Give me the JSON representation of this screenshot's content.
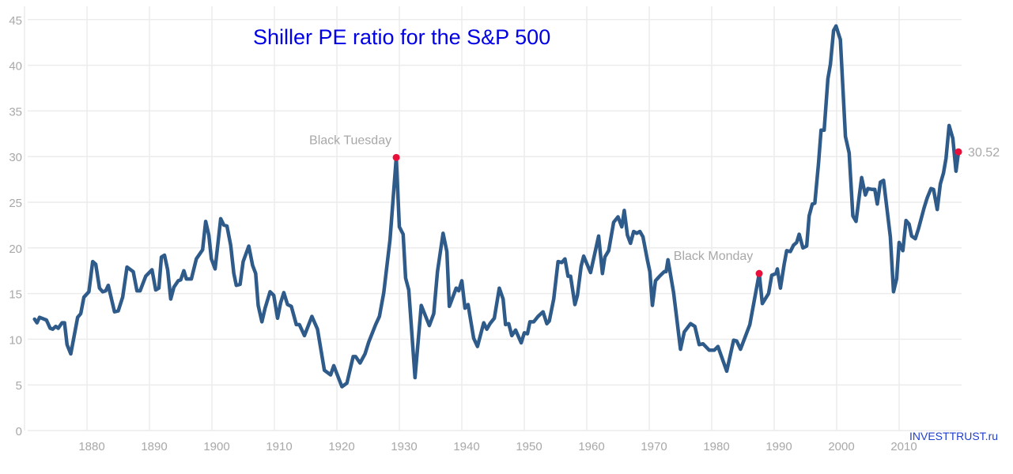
{
  "chart_data": {
    "type": "line",
    "title": "Shiller PE ratio for the S&P 500",
    "xlabel": "",
    "ylabel": "",
    "xlim": [
      1870.5,
      2020
    ],
    "ylim": [
      0,
      45
    ],
    "grid": true,
    "x_ticks": [
      1880,
      1890,
      1900,
      1910,
      1920,
      1930,
      1940,
      1950,
      1960,
      1970,
      1980,
      1990,
      2000,
      2010
    ],
    "y_ticks": [
      0,
      5,
      10,
      15,
      20,
      25,
      30,
      35,
      40,
      45
    ],
    "line_color": "#2e5b8a",
    "marker_color": "#e8103a",
    "series": [
      {
        "name": "Shiller PE",
        "points": [
          [
            1871.6,
            12.2
          ],
          [
            1872,
            11.8
          ],
          [
            1872.4,
            12.4
          ],
          [
            1873.5,
            12.1
          ],
          [
            1874.1,
            11.2
          ],
          [
            1874.5,
            11.1
          ],
          [
            1875,
            11.4
          ],
          [
            1875.4,
            11.2
          ],
          [
            1876,
            11.8
          ],
          [
            1876.4,
            11.8
          ],
          [
            1876.8,
            9.4
          ],
          [
            1877.4,
            8.4
          ],
          [
            1878.5,
            12.4
          ],
          [
            1879,
            12.8
          ],
          [
            1879.5,
            14.6
          ],
          [
            1880.3,
            15.2
          ],
          [
            1880.9,
            18.5
          ],
          [
            1881.4,
            18.2
          ],
          [
            1882,
            15.6
          ],
          [
            1882.5,
            15.2
          ],
          [
            1883,
            15.3
          ],
          [
            1883.4,
            15.9
          ],
          [
            1884.4,
            13.0
          ],
          [
            1885,
            13.1
          ],
          [
            1885.7,
            14.6
          ],
          [
            1886.4,
            17.9
          ],
          [
            1887.4,
            17.4
          ],
          [
            1888,
            15.3
          ],
          [
            1888.5,
            15.3
          ],
          [
            1889.4,
            16.9
          ],
          [
            1890.4,
            17.6
          ],
          [
            1891,
            15.4
          ],
          [
            1891.5,
            15.6
          ],
          [
            1891.9,
            19.0
          ],
          [
            1892.4,
            19.2
          ],
          [
            1892.9,
            17.6
          ],
          [
            1893.4,
            14.4
          ],
          [
            1893.9,
            15.7
          ],
          [
            1894.6,
            16.4
          ],
          [
            1895,
            16.5
          ],
          [
            1895.5,
            17.5
          ],
          [
            1895.9,
            16.6
          ],
          [
            1896.7,
            16.6
          ],
          [
            1897.5,
            18.8
          ],
          [
            1898.5,
            19.8
          ],
          [
            1899,
            22.9
          ],
          [
            1899.5,
            21.4
          ],
          [
            1899.9,
            18.8
          ],
          [
            1900.5,
            17.7
          ],
          [
            1901.4,
            23.2
          ],
          [
            1901.9,
            22.5
          ],
          [
            1902.4,
            22.4
          ],
          [
            1903,
            20.3
          ],
          [
            1903.5,
            17.2
          ],
          [
            1903.9,
            15.9
          ],
          [
            1904.5,
            16.0
          ],
          [
            1905,
            18.5
          ],
          [
            1905.9,
            20.2
          ],
          [
            1906.5,
            18.1
          ],
          [
            1907,
            17.2
          ],
          [
            1907.4,
            13.7
          ],
          [
            1908,
            11.9
          ],
          [
            1908.5,
            13.4
          ],
          [
            1909.3,
            15.2
          ],
          [
            1909.9,
            14.8
          ],
          [
            1910.5,
            12.3
          ],
          [
            1911,
            14.0
          ],
          [
            1911.5,
            15.1
          ],
          [
            1912.1,
            13.8
          ],
          [
            1912.7,
            13.6
          ],
          [
            1913.5,
            11.6
          ],
          [
            1914,
            11.6
          ],
          [
            1914.8,
            10.4
          ],
          [
            1916,
            12.5
          ],
          [
            1916.9,
            11.1
          ],
          [
            1918,
            6.6
          ],
          [
            1919,
            6.1
          ],
          [
            1919.5,
            7.1
          ],
          [
            1920.8,
            4.8
          ],
          [
            1921.6,
            5.2
          ],
          [
            1922.6,
            8.1
          ],
          [
            1923,
            8.1
          ],
          [
            1923.7,
            7.4
          ],
          [
            1924.5,
            8.4
          ],
          [
            1925.1,
            9.7
          ],
          [
            1926.2,
            11.6
          ],
          [
            1926.8,
            12.5
          ],
          [
            1927.5,
            15.1
          ],
          [
            1928.5,
            20.9
          ],
          [
            1929.5,
            29.9
          ],
          [
            1930,
            22.3
          ],
          [
            1930.6,
            21.5
          ],
          [
            1931,
            16.7
          ],
          [
            1931.5,
            15.4
          ],
          [
            1932.5,
            5.8
          ],
          [
            1933.5,
            13.7
          ],
          [
            1934.8,
            11.5
          ],
          [
            1935.5,
            12.8
          ],
          [
            1936.1,
            17.4
          ],
          [
            1937,
            21.6
          ],
          [
            1937.6,
            19.6
          ],
          [
            1938,
            13.6
          ],
          [
            1939.1,
            15.6
          ],
          [
            1939.5,
            15.3
          ],
          [
            1940,
            16.4
          ],
          [
            1940.5,
            13.4
          ],
          [
            1941,
            13.8
          ],
          [
            1941.9,
            10.1
          ],
          [
            1942.5,
            9.2
          ],
          [
            1943.5,
            11.8
          ],
          [
            1944,
            11.1
          ],
          [
            1944.5,
            11.7
          ],
          [
            1945.2,
            12.3
          ],
          [
            1946,
            15.6
          ],
          [
            1946.6,
            14.4
          ],
          [
            1947,
            11.6
          ],
          [
            1947.5,
            11.7
          ],
          [
            1948,
            10.4
          ],
          [
            1948.6,
            11.0
          ],
          [
            1949.5,
            9.6
          ],
          [
            1950,
            10.7
          ],
          [
            1950.5,
            10.6
          ],
          [
            1950.9,
            11.9
          ],
          [
            1951.5,
            11.9
          ],
          [
            1952.2,
            12.5
          ],
          [
            1953,
            13.0
          ],
          [
            1953.6,
            11.7
          ],
          [
            1954,
            12.0
          ],
          [
            1954.7,
            14.4
          ],
          [
            1955.4,
            18.5
          ],
          [
            1956,
            18.4
          ],
          [
            1956.5,
            18.8
          ],
          [
            1957,
            16.9
          ],
          [
            1957.4,
            16.9
          ],
          [
            1958.1,
            13.8
          ],
          [
            1958.5,
            14.8
          ],
          [
            1959.1,
            18.0
          ],
          [
            1959.5,
            19.1
          ],
          [
            1960.6,
            17.3
          ],
          [
            1961.9,
            21.3
          ],
          [
            1962.5,
            17.2
          ],
          [
            1962.9,
            19.0
          ],
          [
            1963.5,
            19.7
          ],
          [
            1964.3,
            22.8
          ],
          [
            1965,
            23.4
          ],
          [
            1965.6,
            22.3
          ],
          [
            1966,
            24.1
          ],
          [
            1966.5,
            21.4
          ],
          [
            1967,
            20.5
          ],
          [
            1967.5,
            21.8
          ],
          [
            1968,
            21.6
          ],
          [
            1968.5,
            21.8
          ],
          [
            1969,
            21.2
          ],
          [
            1969.7,
            18.7
          ],
          [
            1970.1,
            17.4
          ],
          [
            1970.5,
            13.7
          ],
          [
            1971,
            16.4
          ],
          [
            1971.8,
            17.0
          ],
          [
            1972.4,
            17.4
          ],
          [
            1972.7,
            17.4
          ],
          [
            1973,
            18.7
          ],
          [
            1973.9,
            15.1
          ],
          [
            1974.5,
            11.7
          ],
          [
            1975,
            8.9
          ],
          [
            1975.6,
            10.8
          ],
          [
            1976.6,
            11.7
          ],
          [
            1977.3,
            11.4
          ],
          [
            1978,
            9.4
          ],
          [
            1978.6,
            9.5
          ],
          [
            1979.6,
            8.8
          ],
          [
            1980.4,
            8.8
          ],
          [
            1981,
            9.2
          ],
          [
            1982.4,
            6.5
          ],
          [
            1983.5,
            9.9
          ],
          [
            1984,
            9.8
          ],
          [
            1984.6,
            8.9
          ],
          [
            1986.1,
            11.6
          ],
          [
            1987.6,
            17.2
          ],
          [
            1988.1,
            13.9
          ],
          [
            1989.1,
            15.0
          ],
          [
            1989.6,
            17.0
          ],
          [
            1990.3,
            17.2
          ],
          [
            1990.5,
            17.7
          ],
          [
            1991,
            15.6
          ],
          [
            1991.6,
            18.2
          ],
          [
            1992,
            19.7
          ],
          [
            1992.6,
            19.6
          ],
          [
            1993.1,
            20.3
          ],
          [
            1993.6,
            20.6
          ],
          [
            1994,
            21.5
          ],
          [
            1994.6,
            20.0
          ],
          [
            1995.2,
            20.2
          ],
          [
            1995.6,
            23.5
          ],
          [
            1996.1,
            24.8
          ],
          [
            1996.5,
            24.9
          ],
          [
            1997.1,
            29.3
          ],
          [
            1997.5,
            32.9
          ],
          [
            1998,
            32.9
          ],
          [
            1998.6,
            38.5
          ],
          [
            1999,
            40.1
          ],
          [
            1999.5,
            43.8
          ],
          [
            1999.9,
            44.3
          ],
          [
            2000.6,
            42.8
          ],
          [
            2001.4,
            32.2
          ],
          [
            2002,
            30.4
          ],
          [
            2002.6,
            23.5
          ],
          [
            2003.1,
            22.9
          ],
          [
            2004,
            27.7
          ],
          [
            2004.6,
            25.8
          ],
          [
            2005,
            26.5
          ],
          [
            2005.7,
            26.4
          ],
          [
            2006.1,
            26.4
          ],
          [
            2006.5,
            24.8
          ],
          [
            2007,
            27.2
          ],
          [
            2007.5,
            27.4
          ],
          [
            2008.6,
            21.2
          ],
          [
            2009.1,
            15.2
          ],
          [
            2009.6,
            16.6
          ],
          [
            2010,
            20.6
          ],
          [
            2010.6,
            19.7
          ],
          [
            2011.1,
            23.0
          ],
          [
            2011.6,
            22.6
          ],
          [
            2012,
            21.3
          ],
          [
            2012.6,
            21.0
          ],
          [
            2013.1,
            22.1
          ],
          [
            2014,
            24.4
          ],
          [
            2014.5,
            25.5
          ],
          [
            2015.1,
            26.5
          ],
          [
            2015.5,
            26.4
          ],
          [
            2016.1,
            24.2
          ],
          [
            2016.6,
            27.0
          ],
          [
            2017.1,
            28.2
          ],
          [
            2017.5,
            29.8
          ],
          [
            2018,
            33.4
          ],
          [
            2018.6,
            32.0
          ],
          [
            2019.1,
            28.4
          ],
          [
            2019.5,
            30.52
          ]
        ]
      }
    ],
    "annotations": [
      {
        "label": "Black Tuesday",
        "x": 1929.5,
        "y": 29.9,
        "position": "above"
      },
      {
        "label": "Black Monday",
        "x": 1987.6,
        "y": 17.2,
        "position": "above"
      },
      {
        "label": "30.52",
        "x": 2019.5,
        "y": 30.52,
        "position": "right"
      }
    ],
    "watermark": "INVESTTRUST.ru"
  }
}
